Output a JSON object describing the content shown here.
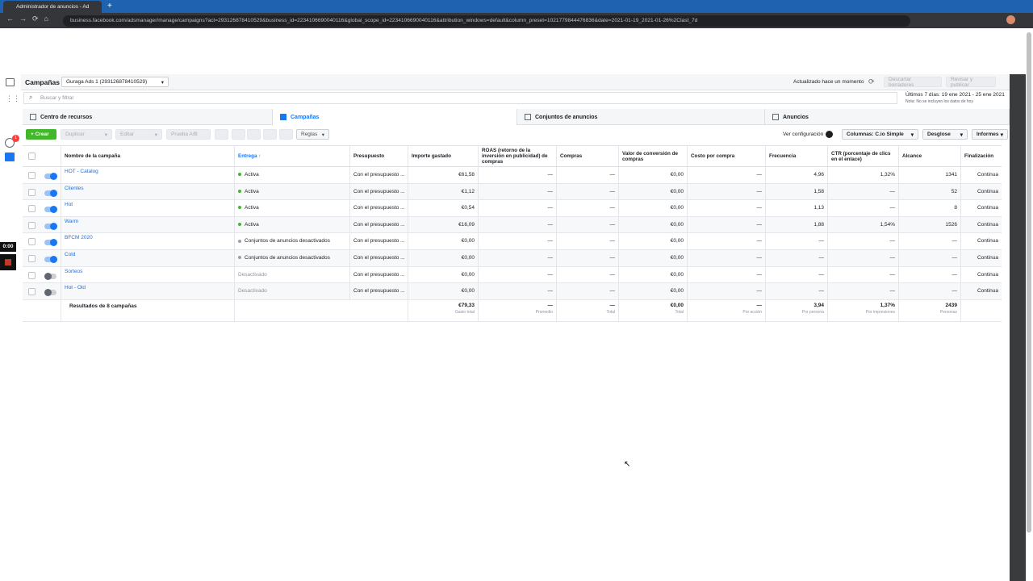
{
  "browser": {
    "tab_title": "Administrador de anuncios - Ad",
    "url": "business.facebook.com/adsmanager/manage/campaigns?act=293126878410529&business_id=2234106690040116&global_scope_id=2234106690040116&attribution_windows=default&column_preset=1021779844476836&date=2021-01-19_2021-01-26%2Clast_7d"
  },
  "sidebar": {
    "notification_badge": "1",
    "timer": "0:00"
  },
  "header": {
    "title": "Campañas",
    "account": "Guraga Ads 1 (293126878410529)",
    "updated": "Actualizado hace un momento",
    "discard": "Descartar borradores",
    "publish": "Revisar y publicar"
  },
  "search": {
    "placeholder": "Buscar y filtrar",
    "date_range": "Últimos 7 días: 19 ene 2021 - 25 ene 2021",
    "date_note": "Nota: No se incluyen los datos de hoy"
  },
  "tabs": [
    "Centro de recursos",
    "Campañas",
    "Conjuntos de anuncios",
    "Anuncios"
  ],
  "toolbar": {
    "create": "Crear",
    "duplicate": "Duplicar",
    "edit": "Editar",
    "ab_test": "Prueba A/B",
    "rules": "Reglas",
    "view_settings": "Ver configuración",
    "columns": "Columnas: C.io Simple",
    "breakdown": "Desglose",
    "reports": "Informes"
  },
  "table": {
    "columns": [
      "Nombre de la campaña",
      "Entrega ↑",
      "Presupuesto",
      "Importe gastado",
      "ROAS (retorno de la inversión en publicidad) de compras",
      "Compras",
      "Valor de conversión de compras",
      "Costo por compra",
      "Frecuencia",
      "CTR (porcentaje de clics en el enlace)",
      "Alcance",
      "Finalización"
    ],
    "rows": [
      {
        "enabled": true,
        "dot_color": "#42b72a",
        "cells": [
          "HOT - Catalog",
          "Activa",
          "Con el presupuesto ...",
          "€61,58",
          "—",
          "—",
          "€0,00",
          "—",
          "4,96",
          "1,32%",
          "1341",
          "Continua"
        ]
      },
      {
        "enabled": true,
        "dot_color": "#42b72a",
        "cells": [
          "Clientes",
          "Activa",
          "Con el presupuesto ...",
          "€1,12",
          "—",
          "—",
          "€0,00",
          "—",
          "1,58",
          "—",
          "52",
          "Continua"
        ]
      },
      {
        "enabled": true,
        "dot_color": "#42b72a",
        "cells": [
          "Hot",
          "Activa",
          "Con el presupuesto ...",
          "€0,54",
          "—",
          "—",
          "€0,00",
          "—",
          "1,13",
          "—",
          "8",
          "Continua"
        ]
      },
      {
        "enabled": true,
        "dot_color": "#42b72a",
        "cells": [
          "Warm",
          "Activa",
          "Con el presupuesto ...",
          "€16,09",
          "—",
          "—",
          "€0,00",
          "—",
          "1,88",
          "1,54%",
          "1526",
          "Continua"
        ]
      },
      {
        "enabled": true,
        "dot_color": "#a0a0a0",
        "cells": [
          "BFCM 2020",
          "Conjuntos de anuncios desactivados",
          "Con el presupuesto ...",
          "€0,00",
          "—",
          "—",
          "€0,00",
          "—",
          "—",
          "—",
          "—",
          "Continua"
        ]
      },
      {
        "enabled": true,
        "dot_color": "#a0a0a0",
        "cells": [
          "Cold",
          "Conjuntos de anuncios desactivados",
          "Con el presupuesto ...",
          "€0,00",
          "—",
          "—",
          "€0,00",
          "—",
          "—",
          "—",
          "—",
          "Continua"
        ]
      },
      {
        "enabled": false,
        "cells": [
          "Sorteos",
          "Desactivado",
          "Con el presupuesto ...",
          "€0,00",
          "—",
          "—",
          "€0,00",
          "—",
          "—",
          "—",
          "—",
          "Continua"
        ]
      },
      {
        "enabled": false,
        "cells": [
          "Hot - Old",
          "Desactivado",
          "Con el presupuesto ...",
          "€0,00",
          "—",
          "—",
          "€0,00",
          "—",
          "—",
          "—",
          "—",
          "Continua"
        ]
      }
    ],
    "totals": {
      "label": "Resultados de 8 campañas",
      "values": [
        "€79,33",
        "—",
        "—",
        "€0,00",
        "—",
        "3,94",
        "1,37%",
        "2439"
      ],
      "notes": [
        "Gasto total",
        "Promedio",
        "Total",
        "Total",
        "Por acción",
        "Por persona",
        "Por impresiones",
        "Personas"
      ]
    }
  }
}
